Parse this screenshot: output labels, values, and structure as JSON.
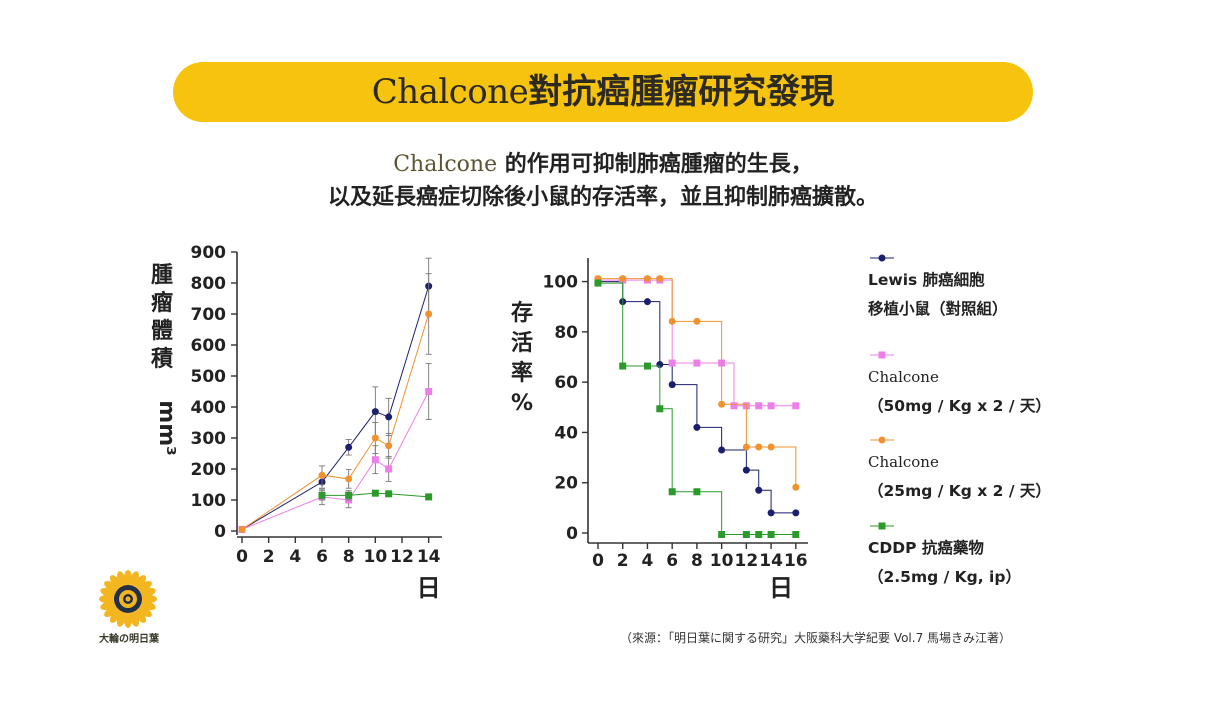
{
  "title": {
    "en": "Chalcone",
    "zh": "對抗癌腫瘤研究發現"
  },
  "subtitle": {
    "line1_en": "Chalcone",
    "line1_zh": " 的作用可抑制肺癌腫瘤的生長，",
    "line2": "以及延長癌症切除後小鼠的存活率，並且抑制肺癌擴散。"
  },
  "series_meta": [
    {
      "key": "control",
      "color": "#1c1f6e",
      "marker": "circle",
      "label_lines": [
        "Lewis 肺癌細胞",
        "移植小鼠（對照組）"
      ]
    },
    {
      "key": "chalcone50",
      "color": "#ee7fe8",
      "marker": "square",
      "label_lines": [
        "Chalcone",
        "（50mg / Kg x 2 / 天）"
      ]
    },
    {
      "key": "chalcone25",
      "color": "#f0922e",
      "marker": "circle",
      "label_lines": [
        "Chalcone",
        "（25mg / Kg x 2 / 天）"
      ]
    },
    {
      "key": "cddp",
      "color": "#2a9a2a",
      "marker": "square",
      "label_lines": [
        "CDDP 抗癌藥物",
        "（2.5mg / Kg, ip）"
      ]
    }
  ],
  "chart_data": [
    {
      "type": "line",
      "ylabel": "腫瘤體積",
      "yunit": "mm³",
      "xlabel": "日",
      "xlim": [
        0,
        15
      ],
      "ylim": [
        0,
        900
      ],
      "xticks": [
        "0",
        "2",
        "4",
        "6",
        "8",
        "10",
        "12",
        "14"
      ],
      "yticks": [
        "0",
        "100",
        "200",
        "300",
        "400",
        "500",
        "600",
        "700",
        "800",
        "900"
      ],
      "series": [
        {
          "name": "Lewis 肺癌細胞移植小鼠（對照組）",
          "x": [
            0,
            6,
            8,
            10,
            11,
            14
          ],
          "values": [
            5,
            158,
            270,
            385,
            368,
            790
          ],
          "err": [
            0,
            20,
            25,
            80,
            60,
            90
          ]
        },
        {
          "name": "Chalcone (50mg/Kg x 2/天)",
          "x": [
            0,
            6,
            8,
            10,
            11,
            14
          ],
          "values": [
            5,
            110,
            100,
            230,
            200,
            450
          ],
          "err": [
            0,
            25,
            25,
            45,
            40,
            90
          ]
        },
        {
          "name": "Chalcone (25mg/Kg x 2/天)",
          "x": [
            0,
            6,
            8,
            10,
            11,
            14
          ],
          "values": [
            5,
            180,
            168,
            300,
            275,
            700
          ],
          "err": [
            0,
            30,
            30,
            50,
            40,
            130
          ]
        },
        {
          "name": "CDDP 抗癌藥物",
          "x": [
            6,
            8,
            10,
            11,
            14
          ],
          "values": [
            115,
            115,
            122,
            120,
            110
          ],
          "err": [
            15,
            15,
            0,
            0,
            0
          ]
        }
      ]
    },
    {
      "type": "line",
      "ylabel": "存活率%",
      "xlabel": "日",
      "xlim": [
        0,
        16.5
      ],
      "ylim": [
        0,
        105
      ],
      "xticks": [
        "0",
        "2",
        "4",
        "6",
        "8",
        "10",
        "12",
        "14",
        "16"
      ],
      "yticks": [
        "0",
        "20",
        "40",
        "60",
        "80",
        "100"
      ],
      "series": [
        {
          "name": "Lewis 肺癌細胞移植小鼠（對照組）",
          "x": [
            0,
            2,
            4,
            5,
            6,
            8,
            10,
            12,
            13,
            14,
            16
          ],
          "values": [
            100,
            92,
            92,
            67,
            59,
            42,
            33,
            25,
            17,
            8,
            8
          ]
        },
        {
          "name": "Chalcone (50mg/Kg x 2/天)",
          "x": [
            0,
            2,
            4,
            5,
            6,
            8,
            10,
            11,
            12,
            13,
            14,
            16
          ],
          "values": [
            100,
            100,
            100,
            100,
            67,
            67,
            67,
            50,
            50,
            50,
            50,
            50
          ]
        },
        {
          "name": "Chalcone (25mg/Kg x 2/天)",
          "x": [
            0,
            2,
            4,
            5,
            6,
            8,
            10,
            12,
            13,
            14,
            16
          ],
          "values": [
            100,
            100,
            100,
            100,
            83,
            83,
            50,
            33,
            33,
            33,
            17
          ]
        },
        {
          "name": "CDDP 抗癌藥物",
          "x": [
            0,
            2,
            4,
            5,
            6,
            8,
            10,
            12,
            13,
            14,
            16
          ],
          "values": [
            100,
            67,
            67,
            50,
            17,
            17,
            0,
            0,
            0,
            0,
            0
          ]
        }
      ]
    }
  ],
  "logo_caption": "大輪の明日葉",
  "source": "（來源：「明日葉に関する研究」大阪藥科大学紀要 Vol.7 馬場きみ江著）"
}
